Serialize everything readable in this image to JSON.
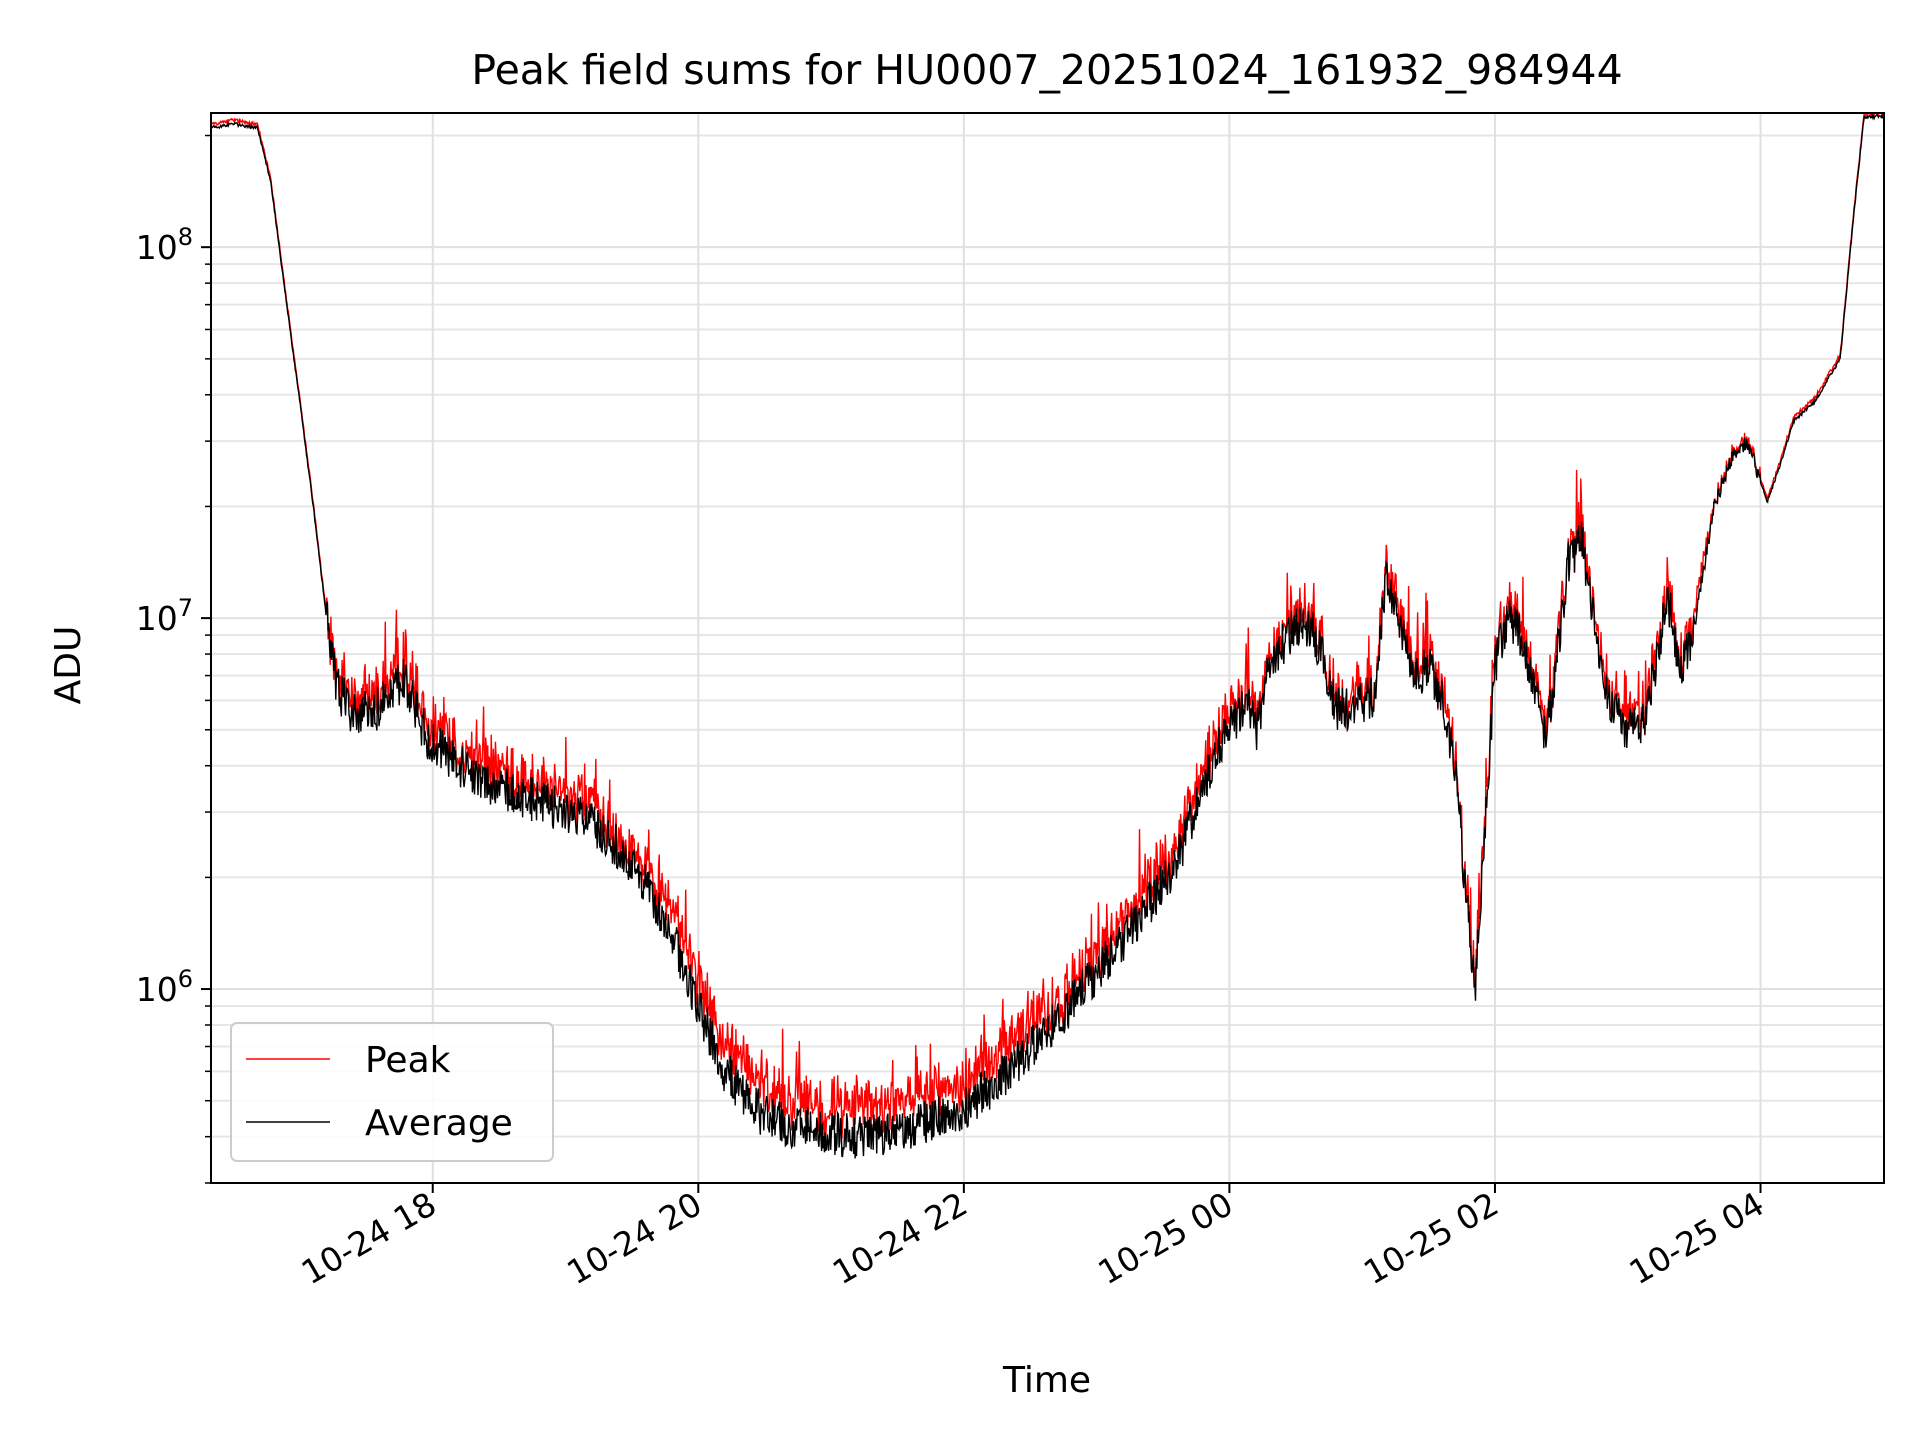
{
  "chart_data": {
    "type": "line",
    "title": "Peak field sums for HU0007_20251024_161932_984944",
    "xlabel": "Time",
    "ylabel": "ADU",
    "yscale": "log",
    "xlim_hours": [
      16.33,
      28.93
    ],
    "ylim": [
      300000,
      230000000
    ],
    "grid": true,
    "legend_position": "lower-left",
    "x_ticks": [
      {
        "hour": 18,
        "label": "10-24 18"
      },
      {
        "hour": 20,
        "label": "10-24 20"
      },
      {
        "hour": 22,
        "label": "10-24 22"
      },
      {
        "hour": 24,
        "label": "10-25 00"
      },
      {
        "hour": 26,
        "label": "10-25 02"
      },
      {
        "hour": 28,
        "label": "10-25 04"
      }
    ],
    "y_ticks": [
      {
        "value": 1000000,
        "base": "10",
        "exp": "6"
      },
      {
        "value": 10000000,
        "base": "10",
        "exp": "7"
      },
      {
        "value": 100000000,
        "base": "10",
        "exp": "8"
      }
    ],
    "series": [
      {
        "name": "Peak",
        "color": "#ff0000",
        "noise_dex": 0.05,
        "offset_dex_early": 0.045,
        "offset_dex_dip": 0.075,
        "offset_dex_late": 0.03,
        "spike_dex": 0.15
      },
      {
        "name": "Average",
        "color": "#000000",
        "noise_dex": 0.05,
        "offset_dex_early": 0.0,
        "offset_dex_dip": 0.0,
        "offset_dex_late": 0.0,
        "spike_dex": 0.0
      }
    ],
    "baseline_points": [
      [
        16.33,
        210000000
      ],
      [
        16.5,
        215000000
      ],
      [
        16.68,
        210000000
      ],
      [
        16.78,
        150000000
      ],
      [
        16.9,
        70000000
      ],
      [
        17.0,
        38000000
      ],
      [
        17.1,
        20000000
      ],
      [
        17.2,
        10000000
      ],
      [
        17.28,
        6500000
      ],
      [
        17.4,
        5500000
      ],
      [
        17.55,
        5600000
      ],
      [
        17.7,
        6200000
      ],
      [
        17.78,
        7000000
      ],
      [
        17.85,
        6000000
      ],
      [
        17.95,
        4800000
      ],
      [
        18.2,
        4000000
      ],
      [
        18.5,
        3500000
      ],
      [
        18.8,
        3200000
      ],
      [
        19.0,
        3000000
      ],
      [
        19.2,
        2800000
      ],
      [
        19.4,
        2400000
      ],
      [
        19.6,
        1900000
      ],
      [
        19.8,
        1400000
      ],
      [
        20.0,
        900000
      ],
      [
        20.2,
        600000
      ],
      [
        20.5,
        450000
      ],
      [
        20.8,
        420000
      ],
      [
        21.2,
        400000
      ],
      [
        21.6,
        420000
      ],
      [
        22.0,
        480000
      ],
      [
        22.3,
        580000
      ],
      [
        22.6,
        750000
      ],
      [
        23.0,
        1100000
      ],
      [
        23.3,
        1500000
      ],
      [
        23.6,
        2200000
      ],
      [
        23.8,
        3500000
      ],
      [
        24.0,
        5200000
      ],
      [
        24.15,
        5800000
      ],
      [
        24.2,
        4800000
      ],
      [
        24.3,
        7500000
      ],
      [
        24.5,
        9500000
      ],
      [
        24.6,
        9600000
      ],
      [
        24.7,
        8000000
      ],
      [
        24.8,
        5600000
      ],
      [
        24.95,
        5800000
      ],
      [
        25.1,
        6200000
      ],
      [
        25.18,
        13500000
      ],
      [
        25.3,
        9000000
      ],
      [
        25.4,
        6800000
      ],
      [
        25.5,
        7500000
      ],
      [
        25.6,
        6000000
      ],
      [
        25.7,
        4000000
      ],
      [
        25.77,
        2000000
      ],
      [
        25.85,
        1000000
      ],
      [
        25.92,
        2500000
      ],
      [
        26.0,
        7500000
      ],
      [
        26.1,
        10000000
      ],
      [
        26.2,
        9000000
      ],
      [
        26.3,
        6500000
      ],
      [
        26.38,
        4800000
      ],
      [
        26.45,
        7000000
      ],
      [
        26.55,
        14000000
      ],
      [
        26.65,
        16500000
      ],
      [
        26.75,
        10000000
      ],
      [
        26.85,
        6000000
      ],
      [
        27.0,
        5000000
      ],
      [
        27.1,
        5000000
      ],
      [
        27.2,
        7000000
      ],
      [
        27.3,
        11500000
      ],
      [
        27.4,
        7000000
      ],
      [
        27.5,
        9500000
      ],
      [
        27.65,
        20000000
      ],
      [
        27.8,
        28000000
      ],
      [
        27.9,
        30000000
      ],
      [
        28.05,
        20500000
      ],
      [
        28.15,
        26000000
      ],
      [
        28.25,
        34000000
      ],
      [
        28.4,
        38000000
      ],
      [
        28.6,
        50000000
      ],
      [
        28.7,
        120000000
      ],
      [
        28.78,
        225000000
      ],
      [
        28.93,
        225000000
      ]
    ]
  }
}
